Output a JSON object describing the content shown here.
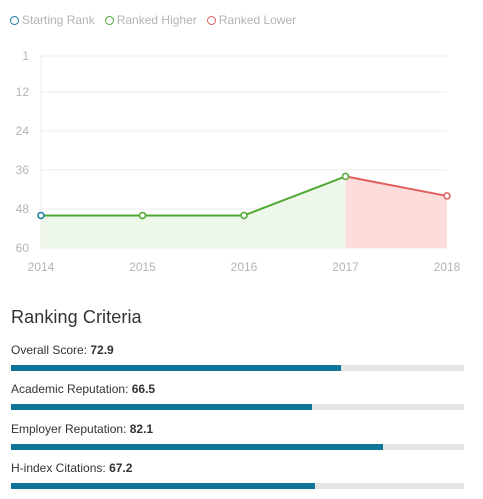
{
  "legend": [
    {
      "label": "Starting Rank",
      "color": "#1a7a9e"
    },
    {
      "label": "Ranked Higher",
      "color": "#4ea832"
    },
    {
      "label": "Ranked Lower",
      "color": "#e06060"
    }
  ],
  "chart_data": {
    "type": "line",
    "x": [
      "2014",
      "2015",
      "2016",
      "2017",
      "2018"
    ],
    "series": [
      {
        "values": [
          50,
          50,
          50,
          38,
          44
        ]
      }
    ],
    "y_ticks": [
      "1",
      "12",
      "24",
      "36",
      "48",
      "60"
    ],
    "y_tick_values": [
      1,
      12,
      24,
      36,
      48,
      60
    ],
    "ylim": [
      1,
      60
    ],
    "y_inverted": true,
    "xlabel": "",
    "ylabel": "",
    "grid": "horizontal",
    "legend_position": "top-left",
    "colors": {
      "starting": "#1a7a9e",
      "higher": "#4ea832",
      "higher_fill": "#eef8ea",
      "lower": "#e06060",
      "lower_fill": "#fddcdc",
      "grid": "#ececec",
      "tick": "#b4b4b4"
    }
  },
  "criteria": {
    "title": "Ranking Criteria",
    "items": [
      {
        "label": "Overall Score:",
        "value": "72.9",
        "fill": 0.729
      },
      {
        "label": "Academic Reputation:",
        "value": "66.5",
        "fill": 0.665
      },
      {
        "label": "Employer Reputation:",
        "value": "82.1",
        "fill": 0.821
      },
      {
        "label": "H-index Citations:",
        "value": "67.2",
        "fill": 0.672
      }
    ],
    "bar_color": "#0e7599",
    "track_color": "#e4e4e4"
  }
}
